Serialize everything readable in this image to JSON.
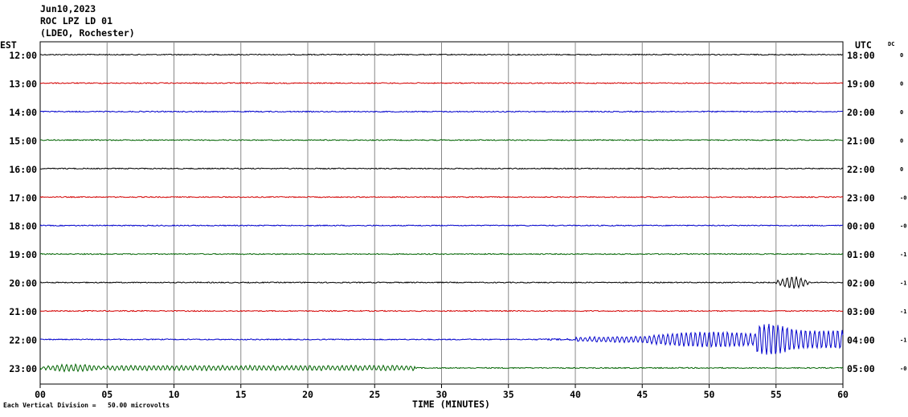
{
  "header": {
    "date": "Jun10,2023",
    "station": "ROC LPZ LD 01",
    "network": "(LDEO, Rochester)"
  },
  "axis": {
    "left_label": "EST",
    "right_label": "UTC",
    "dc_label": "DC",
    "xlabel": "TIME (MINUTES)",
    "footer": "Each Vertical Division =   50.00 microvolts"
  },
  "chart_data": {
    "type": "line",
    "title": "",
    "xlabel": "TIME (MINUTES)",
    "xlim": [
      0,
      60
    ],
    "x_ticks": [
      "00",
      "05",
      "10",
      "15",
      "20",
      "25",
      "30",
      "35",
      "40",
      "45",
      "50",
      "55",
      "60"
    ],
    "grid": true,
    "rows": [
      {
        "est": "12:00",
        "utc": "18:00",
        "dc": "0",
        "color": "#000000"
      },
      {
        "est": "13:00",
        "utc": "19:00",
        "dc": "0",
        "color": "#d40000"
      },
      {
        "est": "14:00",
        "utc": "20:00",
        "dc": "0",
        "color": "#0000cc"
      },
      {
        "est": "15:00",
        "utc": "21:00",
        "dc": "0",
        "color": "#006400"
      },
      {
        "est": "16:00",
        "utc": "22:00",
        "dc": "0",
        "color": "#000000"
      },
      {
        "est": "17:00",
        "utc": "23:00",
        "dc": "-0",
        "color": "#d40000"
      },
      {
        "est": "18:00",
        "utc": "00:00",
        "dc": "-0",
        "color": "#0000cc"
      },
      {
        "est": "19:00",
        "utc": "01:00",
        "dc": "-1",
        "color": "#006400"
      },
      {
        "est": "20:00",
        "utc": "02:00",
        "dc": "-1",
        "color": "#000000"
      },
      {
        "est": "21:00",
        "utc": "03:00",
        "dc": "-1",
        "color": "#d40000"
      },
      {
        "est": "22:00",
        "utc": "04:00",
        "dc": "-1",
        "color": "#0000cc"
      },
      {
        "est": "23:00",
        "utc": "05:00",
        "dc": "-0",
        "color": "#006400"
      }
    ]
  }
}
